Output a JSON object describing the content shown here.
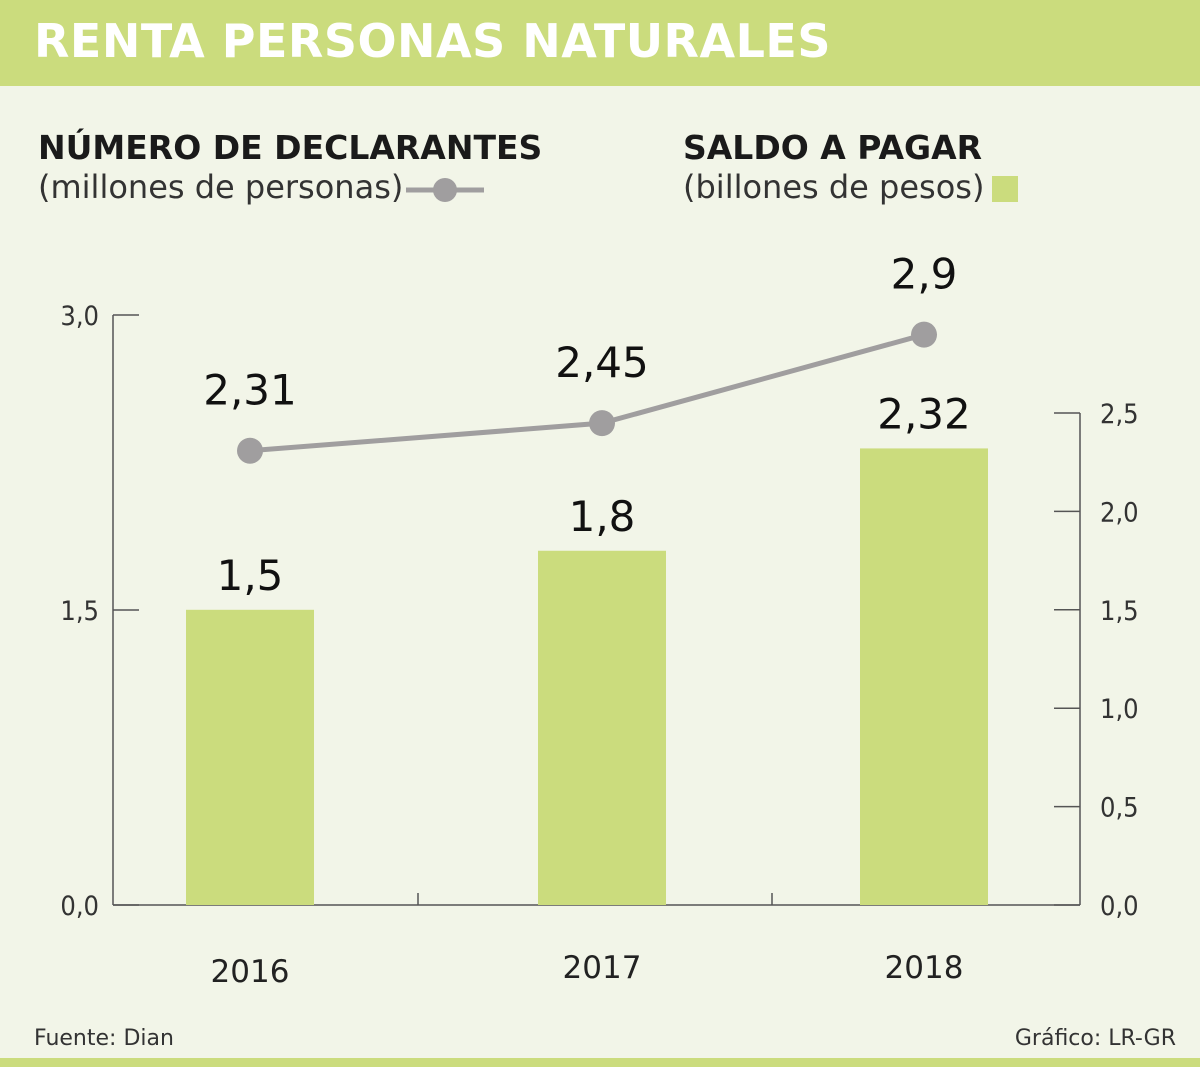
{
  "header": {
    "title": "RENTA PERSONAS NATURALES"
  },
  "legend": {
    "line_heading": "NÚMERO DE DECLARANTES",
    "line_unit": "(millones de personas)",
    "bar_heading": "SALDO A PAGAR",
    "bar_unit": "(billones de pesos)"
  },
  "footer": {
    "source": "Fuente: Dian",
    "credit": "Gráfico: LR-GR"
  },
  "colors": {
    "bar": "#cbdc7d",
    "line": "#a09e9f",
    "marker": "#a09e9f",
    "axis": "#555555"
  },
  "chart_data": {
    "type": "bar",
    "categories": [
      "2016",
      "2017",
      "2018"
    ],
    "series": [
      {
        "values": [
          1.5,
          1.8,
          2.32
        ],
        "labels": [
          "1,5",
          "1,8",
          "2,32"
        ],
        "chart_type": "bar",
        "axis": "right"
      },
      {
        "values": [
          2.31,
          2.45,
          2.9
        ],
        "labels": [
          "2,31",
          "2,45",
          "2,9"
        ],
        "chart_type": "line",
        "axis": "left"
      }
    ],
    "left_axis": {
      "ylim": [
        0,
        3.0
      ],
      "ticks": [
        0,
        1.5,
        3.0
      ],
      "tick_labels": [
        "0,0",
        "1,5",
        "3,0"
      ]
    },
    "right_axis": {
      "ylim": [
        0,
        2.5
      ],
      "ticks": [
        0,
        0.5,
        1.0,
        1.5,
        2.0,
        2.5
      ],
      "tick_labels": [
        "0,0",
        "0,5",
        "1,0",
        "1,5",
        "2,0",
        "2,5"
      ]
    },
    "grid": false
  }
}
